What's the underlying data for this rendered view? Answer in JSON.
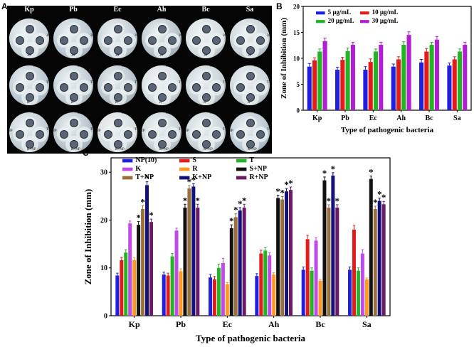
{
  "panels": {
    "a": {
      "letter": "A",
      "columns": [
        "Kp",
        "Pb",
        "Ec",
        "Ah",
        "Bc",
        "Sa"
      ],
      "row_labels": [
        [
          "5",
          "10",
          "20",
          "30"
        ],
        [
          "S",
          "R",
          "T",
          "K"
        ],
        [
          "S+NP",
          "R+NP",
          "T+NP",
          "K+NP"
        ]
      ]
    },
    "b": {
      "letter": "B"
    },
    "c": {
      "letter": "C"
    }
  },
  "chart_data": [
    {
      "type": "bar",
      "panel": "B",
      "categories": [
        "Kp",
        "Pb",
        "Ec",
        "Ah",
        "Bc",
        "Sa"
      ],
      "series": [
        {
          "name": "5 µg/mL",
          "color": "#1f1fe0",
          "values": [
            8.4,
            7.8,
            7.8,
            8.4,
            9.2,
            8.6
          ],
          "errors": [
            0.6,
            0.5,
            0.6,
            0.5,
            0.6,
            0.5
          ]
        },
        {
          "name": "10 µg/mL",
          "color": "#e41b1b",
          "values": [
            9.6,
            9.7,
            9.3,
            9.8,
            11.3,
            9.8
          ],
          "errors": [
            0.5,
            0.5,
            0.6,
            0.5,
            0.6,
            0.5
          ]
        },
        {
          "name": "20 µg/mL",
          "color": "#22b422",
          "values": [
            11.3,
            11.4,
            11.3,
            12.6,
            12.6,
            11.3
          ],
          "errors": [
            0.5,
            0.6,
            0.5,
            0.6,
            0.5,
            0.5
          ]
        },
        {
          "name": "30 µg/mL",
          "color": "#b01fd0",
          "values": [
            13.3,
            12.6,
            12.6,
            14.5,
            13.6,
            12.6
          ],
          "errors": [
            0.6,
            0.5,
            0.5,
            0.6,
            0.6,
            0.5
          ]
        }
      ],
      "xlabel": "Type of pathogenic bacteria",
      "ylabel": "Zone of Inhibition (mm)",
      "ylim": [
        0,
        20
      ],
      "yticks": [
        0,
        5,
        10,
        15,
        20
      ],
      "legend": "top-left"
    },
    {
      "type": "bar",
      "panel": "C",
      "categories": [
        "Kp",
        "Pb",
        "Ec",
        "Ah",
        "Bc",
        "Sa"
      ],
      "series": [
        {
          "name": "NP(10)",
          "color": "#1f1fe0",
          "values": [
            8.4,
            8.6,
            8.0,
            8.3,
            9.6,
            9.6
          ],
          "errors": [
            0.5,
            0.5,
            0.6,
            0.5,
            0.6,
            0.6
          ],
          "star": [
            false,
            false,
            false,
            false,
            false,
            false
          ]
        },
        {
          "name": "S",
          "color": "#e41b1b",
          "values": [
            11.6,
            8.4,
            7.6,
            13.0,
            16.0,
            18.0
          ],
          "errors": [
            0.6,
            0.5,
            0.6,
            0.7,
            0.8,
            0.9
          ],
          "star": [
            false,
            false,
            false,
            false,
            false,
            false
          ]
        },
        {
          "name": "T",
          "color": "#22b422",
          "values": [
            13.2,
            12.4,
            10.0,
            13.6,
            9.4,
            9.4
          ],
          "errors": [
            0.6,
            0.6,
            0.8,
            0.6,
            0.6,
            0.6
          ],
          "star": [
            false,
            false,
            false,
            false,
            false,
            false
          ]
        },
        {
          "name": "K",
          "color": "#c04ae8",
          "values": [
            19.3,
            17.8,
            11.0,
            12.6,
            15.7,
            13.0
          ],
          "errors": [
            0.5,
            0.5,
            1.0,
            0.6,
            0.6,
            0.8
          ],
          "star": [
            false,
            false,
            false,
            false,
            false,
            false
          ]
        },
        {
          "name": "R",
          "color": "#ff9922",
          "values": [
            11.6,
            9.3,
            6.6,
            8.6,
            7.3,
            7.6
          ],
          "errors": [
            0.5,
            0.5,
            0.3,
            0.4,
            0.3,
            0.3
          ],
          "star": [
            false,
            false,
            false,
            false,
            false,
            false
          ]
        },
        {
          "name": "S+NP",
          "color": "#111111",
          "values": [
            19.0,
            22.6,
            18.3,
            24.6,
            28.3,
            28.6
          ],
          "errors": [
            0.7,
            0.7,
            0.7,
            0.6,
            0.7,
            0.6
          ],
          "star": [
            true,
            true,
            true,
            true,
            true,
            true
          ]
        },
        {
          "name": "T+NP",
          "color": "#97703d",
          "values": [
            22.3,
            26.6,
            20.6,
            24.3,
            22.6,
            22.3
          ],
          "errors": [
            0.7,
            0.6,
            0.7,
            0.6,
            0.6,
            0.6
          ],
          "star": [
            true,
            true,
            true,
            true,
            true,
            true
          ]
        },
        {
          "name": "K+NP",
          "color": "#12127a",
          "values": [
            27.3,
            27.0,
            22.0,
            26.0,
            29.3,
            24.0
          ],
          "errors": [
            0.7,
            0.6,
            0.6,
            0.6,
            0.6,
            0.6
          ],
          "star": [
            true,
            true,
            true,
            true,
            true,
            true
          ]
        },
        {
          "name": "R+NP",
          "color": "#6b1a66",
          "values": [
            19.6,
            22.6,
            22.6,
            26.3,
            22.6,
            23.3
          ],
          "errors": [
            0.6,
            0.7,
            0.7,
            0.6,
            0.6,
            0.6
          ],
          "star": [
            true,
            true,
            true,
            true,
            true,
            true
          ]
        }
      ],
      "xlabel": "Type of pathogenic bacteria",
      "ylabel": "Zone of Inhibition (mm)",
      "ylim": [
        0,
        33
      ],
      "yticks": [
        0,
        10,
        20,
        30
      ],
      "legend": "top-left",
      "significance_marker": "*"
    }
  ]
}
